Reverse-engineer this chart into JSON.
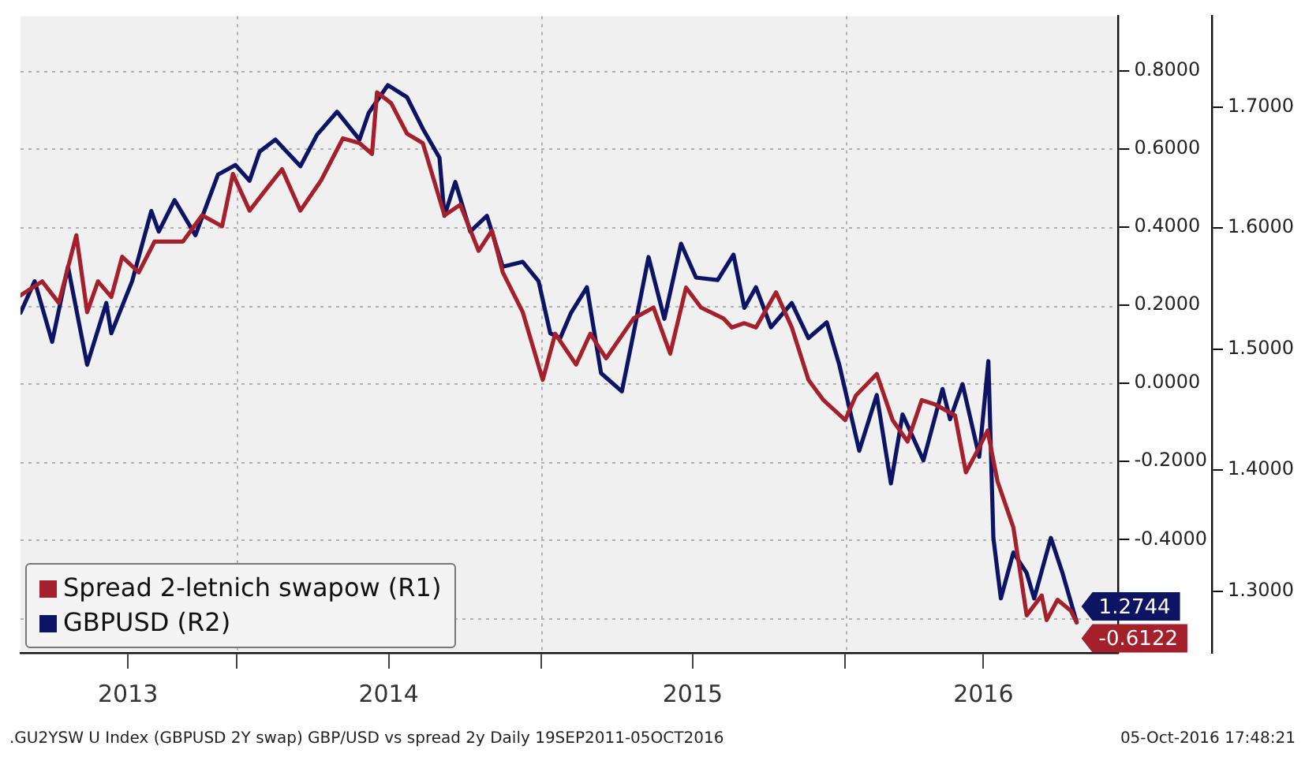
{
  "chart_data": {
    "type": "line",
    "xlim": [
      "2013-04-16",
      "2016-11-24"
    ],
    "xticks": [
      {
        "value": "2013-08-23",
        "label": "2013"
      },
      {
        "value": "2014-01-01",
        "label": null
      },
      {
        "value": "2014-07-02",
        "label": "2014"
      },
      {
        "value": "2015-01-01",
        "label": null
      },
      {
        "value": "2015-07-02",
        "label": "2015"
      },
      {
        "value": "2016-01-01",
        "label": null
      },
      {
        "value": "2016-06-15",
        "label": "2016"
      }
    ],
    "ylim": [
      -0.69,
      0.94
    ],
    "yticks": [
      {
        "value": -0.6,
        "label": null
      },
      {
        "value": -0.4,
        "label": "-0.4000"
      },
      {
        "value": -0.2,
        "label": "-0.2000"
      },
      {
        "value": 0,
        "label": "0.0000"
      },
      {
        "value": 0.2,
        "label": "0.2000"
      },
      {
        "value": 0.4,
        "label": "0.4000"
      },
      {
        "value": 0.6,
        "label": "0.6000"
      },
      {
        "value": 0.8,
        "label": "0.8000"
      }
    ],
    "y2lim": [
      1.249,
      1.775
    ],
    "y2ticks": [
      {
        "value": 1.3,
        "label": "1.3000"
      },
      {
        "value": 1.4,
        "label": "1.4000"
      },
      {
        "value": 1.5,
        "label": "1.5000"
      },
      {
        "value": 1.6,
        "label": "1.6000"
      },
      {
        "value": 1.7,
        "label": "1.7000"
      }
    ],
    "grid": true,
    "legend": "bottom left",
    "series": [
      {
        "name": "Spread 2-letnich swapow (R1)",
        "color": "#a3202c",
        "axis": "y",
        "x": [
          "2013-04-16",
          "2013-05-12",
          "2013-06-01",
          "2013-06-22",
          "2013-07-05",
          "2013-07-18",
          "2013-08-03",
          "2013-08-16",
          "2013-09-05",
          "2013-09-24",
          "2013-10-28",
          "2013-11-20",
          "2013-12-14",
          "2013-12-27",
          "2014-01-16",
          "2014-02-05",
          "2014-02-24",
          "2014-03-18",
          "2014-04-12",
          "2014-05-08",
          "2014-05-28",
          "2014-06-12",
          "2014-06-18",
          "2014-07-05",
          "2014-07-24",
          "2014-08-12",
          "2014-09-07",
          "2014-09-26",
          "2014-10-18",
          "2014-11-03",
          "2014-11-16",
          "2014-12-10",
          "2015-01-03",
          "2015-01-18",
          "2015-02-12",
          "2015-03-01",
          "2015-03-20",
          "2015-04-22",
          "2015-05-16",
          "2015-06-05",
          "2015-06-24",
          "2015-07-12",
          "2015-08-08",
          "2015-08-18",
          "2015-09-02",
          "2015-09-16",
          "2015-10-10",
          "2015-10-29",
          "2015-11-18",
          "2015-12-06",
          "2016-01-01",
          "2016-01-14",
          "2016-02-08",
          "2016-02-27",
          "2016-03-16",
          "2016-04-02",
          "2016-04-18",
          "2016-05-12",
          "2016-05-25",
          "2016-06-08",
          "2016-06-20",
          "2016-07-02",
          "2016-07-21",
          "2016-08-06",
          "2016-08-24",
          "2016-08-30",
          "2016-09-12",
          "2016-09-28",
          "2016-10-05"
        ],
        "values": [
          0.225,
          0.261,
          0.206,
          0.379,
          0.182,
          0.261,
          0.221,
          0.324,
          0.284,
          0.363,
          0.363,
          0.43,
          0.402,
          0.536,
          0.442,
          0.497,
          0.548,
          0.442,
          0.52,
          0.627,
          0.615,
          0.587,
          0.745,
          0.717,
          0.639,
          0.615,
          0.43,
          0.457,
          0.339,
          0.391,
          0.284,
          0.182,
          0.009,
          0.127,
          0.048,
          0.127,
          0.064,
          0.166,
          0.194,
          0.076,
          0.245,
          0.194,
          0.166,
          0.143,
          0.154,
          0.143,
          0.233,
          0.143,
          0.009,
          -0.043,
          -0.094,
          -0.031,
          0.024,
          -0.094,
          -0.149,
          -0.043,
          -0.054,
          -0.082,
          -0.228,
          -0.172,
          -0.121,
          -0.251,
          -0.369,
          -0.594,
          -0.543,
          -0.606,
          -0.554,
          -0.582,
          -0.6122
        ],
        "value_labels": [
          null,
          null,
          null,
          null,
          null,
          null,
          null,
          null,
          null,
          null,
          null,
          null,
          null,
          null,
          null,
          null,
          null,
          null,
          null,
          null,
          null,
          null,
          null,
          null,
          null,
          null,
          null,
          null,
          null,
          null,
          null,
          null,
          null,
          null,
          null,
          null,
          null,
          null,
          null,
          null,
          null,
          null,
          null,
          null,
          null,
          null,
          null,
          null,
          null,
          null,
          null,
          null,
          null,
          null,
          null,
          null,
          null,
          null,
          null,
          null,
          null,
          null,
          null,
          null,
          null,
          null,
          null,
          null,
          "-0.6122"
        ]
      },
      {
        "name": "GBPUSD (R2)",
        "color": "#0d1464",
        "axis": "y2",
        "x": [
          "2013-04-16",
          "2013-05-03",
          "2013-05-24",
          "2013-06-12",
          "2013-07-05",
          "2013-07-28",
          "2013-08-03",
          "2013-08-28",
          "2013-09-20",
          "2013-09-29",
          "2013-10-18",
          "2013-11-12",
          "2013-12-09",
          "2013-12-30",
          "2014-01-16",
          "2014-01-28",
          "2014-02-16",
          "2014-03-18",
          "2014-04-07",
          "2014-05-01",
          "2014-05-28",
          "2014-06-08",
          "2014-07-01",
          "2014-07-24",
          "2014-08-12",
          "2014-09-01",
          "2014-09-07",
          "2014-09-20",
          "2014-10-08",
          "2014-10-28",
          "2014-11-16",
          "2014-12-10",
          "2014-12-29",
          "2015-01-12",
          "2015-01-24",
          "2015-02-06",
          "2015-02-25",
          "2015-03-14",
          "2015-04-08",
          "2015-04-22",
          "2015-05-10",
          "2015-05-29",
          "2015-06-18",
          "2015-07-06",
          "2015-08-01",
          "2015-08-20",
          "2015-09-02",
          "2015-09-16",
          "2015-10-04",
          "2015-10-29",
          "2015-11-18",
          "2015-12-10",
          "2015-12-25",
          "2016-01-18",
          "2016-02-08",
          "2016-02-25",
          "2016-03-10",
          "2016-04-04",
          "2016-04-27",
          "2016-05-06",
          "2016-05-21",
          "2016-06-10",
          "2016-06-21",
          "2016-06-27",
          "2016-07-06",
          "2016-07-21",
          "2016-08-06",
          "2016-08-15",
          "2016-09-04",
          "2016-09-18",
          "2016-10-05"
        ],
        "values": [
          1.53,
          1.556,
          1.506,
          1.568,
          1.487,
          1.538,
          1.513,
          1.556,
          1.614,
          1.597,
          1.623,
          1.594,
          1.644,
          1.652,
          1.639,
          1.663,
          1.673,
          1.651,
          1.677,
          1.696,
          1.673,
          1.695,
          1.718,
          1.708,
          1.682,
          1.658,
          1.61,
          1.638,
          1.597,
          1.61,
          1.568,
          1.572,
          1.556,
          1.513,
          1.509,
          1.53,
          1.551,
          1.48,
          1.465,
          1.513,
          1.576,
          1.525,
          1.587,
          1.559,
          1.557,
          1.578,
          1.534,
          1.551,
          1.518,
          1.538,
          1.509,
          1.522,
          1.487,
          1.416,
          1.462,
          1.389,
          1.446,
          1.408,
          1.467,
          1.442,
          1.471,
          1.411,
          1.49,
          1.344,
          1.294,
          1.332,
          1.315,
          1.294,
          1.344,
          1.315,
          1.2744
        ],
        "value_labels": [
          null,
          null,
          null,
          null,
          null,
          null,
          null,
          null,
          null,
          null,
          null,
          null,
          null,
          null,
          null,
          null,
          null,
          null,
          null,
          null,
          null,
          null,
          null,
          null,
          null,
          null,
          null,
          null,
          null,
          null,
          null,
          null,
          null,
          null,
          null,
          null,
          null,
          null,
          null,
          null,
          null,
          null,
          null,
          null,
          null,
          null,
          null,
          null,
          null,
          null,
          null,
          null,
          null,
          null,
          null,
          null,
          null,
          null,
          null,
          null,
          null,
          null,
          null,
          null,
          null,
          null,
          null,
          null,
          null,
          null,
          "1.2744"
        ]
      }
    ],
    "annotations": [
      ".GU2YSW U Index (GBPUSD 2Y swap) GBP/USD vs spread 2y  Daily 19SEP2011-05OCT2016",
      "05-Oct-2016 17:48:21"
    ]
  }
}
